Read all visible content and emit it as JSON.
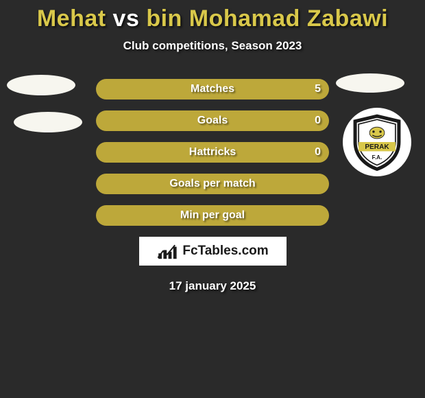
{
  "title": {
    "player1": "Mehat",
    "vs": " vs ",
    "player2": "bin Mohamad Zabawi",
    "color_player1": "#d9c84a",
    "color_vs": "#ffffff",
    "color_player2": "#d9c84a"
  },
  "subtitle": "Club competitions, Season 2023",
  "stats": [
    {
      "label": "Matches",
      "value_right": "5",
      "left_pct": 0,
      "show_right_value": true
    },
    {
      "label": "Goals",
      "value_right": "0",
      "left_pct": 0,
      "show_right_value": true
    },
    {
      "label": "Hattricks",
      "value_right": "0",
      "left_pct": 0,
      "show_right_value": true
    },
    {
      "label": "Goals per match",
      "value_right": "",
      "left_pct": 0,
      "show_right_value": false
    },
    {
      "label": "Min per goal",
      "value_right": "",
      "left_pct": 0,
      "show_right_value": false
    }
  ],
  "colors": {
    "bar_left": "#6e8a3f",
    "bar_right": "#bda83a",
    "background": "#2a2a2a"
  },
  "crest": {
    "label": "PERAK",
    "sublabel": "F.A.",
    "band_color": "#d9c84a",
    "shield_border": "#1a1a1a",
    "inner_bg": "#ffffff"
  },
  "logo": {
    "text": "FcTables.com",
    "icon_alt": "bar-chart-icon"
  },
  "date": "17 january 2025"
}
